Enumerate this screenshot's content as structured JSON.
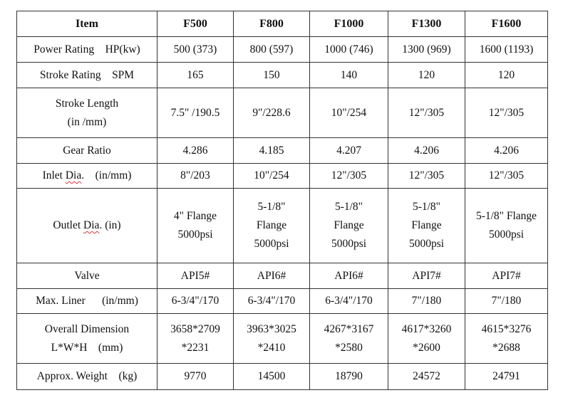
{
  "headers": [
    "Item",
    "F500",
    "F800",
    "F1000",
    "F1300",
    "F1600"
  ],
  "rows": [
    {
      "label": [
        "Power Rating    HP(kw)"
      ],
      "values": [
        [
          "500 (373)"
        ],
        [
          "800 (597)"
        ],
        [
          "1000 (746)"
        ],
        [
          "1300 (969)"
        ],
        [
          "1600 (1193)"
        ]
      ],
      "h": 36
    },
    {
      "label": [
        "Stroke Rating    SPM"
      ],
      "values": [
        [
          "165"
        ],
        [
          "150"
        ],
        [
          "140"
        ],
        [
          "120"
        ],
        [
          "120"
        ]
      ],
      "h": 36
    },
    {
      "label": [
        "Stroke Length",
        "(in /mm)"
      ],
      "values": [
        [
          "7.5\" /190.5"
        ],
        [
          "9\"/228.6"
        ],
        [
          "10\"/254"
        ],
        [
          "12\"/305"
        ],
        [
          "12\"/305"
        ]
      ],
      "h": 70
    },
    {
      "label": [
        "Gear Ratio"
      ],
      "values": [
        [
          "4.286"
        ],
        [
          "4.185"
        ],
        [
          "4.207"
        ],
        [
          "4.206"
        ],
        [
          "4.206"
        ]
      ],
      "h": 36
    },
    {
      "label": [
        "Inlet Dia.    (in/mm)"
      ],
      "values": [
        [
          "8\"/203"
        ],
        [
          "10\"/254"
        ],
        [
          "12\"/305"
        ],
        [
          "12\"/305"
        ],
        [
          "12\"/305"
        ]
      ],
      "h": 35
    },
    {
      "label": [
        "Outlet Dia. (in)"
      ],
      "values": [
        [
          "4\" Flange",
          "5000psi"
        ],
        [
          "5-1/8\"",
          "Flange",
          "5000psi"
        ],
        [
          "5-1/8\"",
          "Flange",
          "5000psi"
        ],
        [
          "5-1/8\"",
          "Flange",
          "5000psi"
        ],
        [
          "5-1/8\" Flange",
          "5000psi"
        ]
      ],
      "h": 105
    },
    {
      "label": [
        "Valve"
      ],
      "values": [
        [
          "API5#"
        ],
        [
          "API6#"
        ],
        [
          "API6#"
        ],
        [
          "API7#"
        ],
        [
          "API7#"
        ]
      ],
      "h": 36
    },
    {
      "label": [
        "Max. Liner      (in/mm)"
      ],
      "values": [
        [
          "6-3/4\"/170"
        ],
        [
          "6-3/4\"/170"
        ],
        [
          "6-3/4\"/170"
        ],
        [
          "7\"/180"
        ],
        [
          "7\"/180"
        ]
      ],
      "h": 35
    },
    {
      "label": [
        "Overall Dimension",
        "L*W*H    (mm)"
      ],
      "values": [
        [
          "3658*2709",
          "*2231"
        ],
        [
          "3963*3025",
          "*2410"
        ],
        [
          "4267*3167",
          "*2580"
        ],
        [
          "4617*3260",
          "*2600"
        ],
        [
          "4615*3276",
          "*2688"
        ]
      ],
      "h": 70
    },
    {
      "label": [
        "Approx. Weight    (kg)"
      ],
      "values": [
        [
          "9770"
        ],
        [
          "14500"
        ],
        [
          "18790"
        ],
        [
          "24572"
        ],
        [
          "24791"
        ]
      ],
      "h": 37
    }
  ]
}
